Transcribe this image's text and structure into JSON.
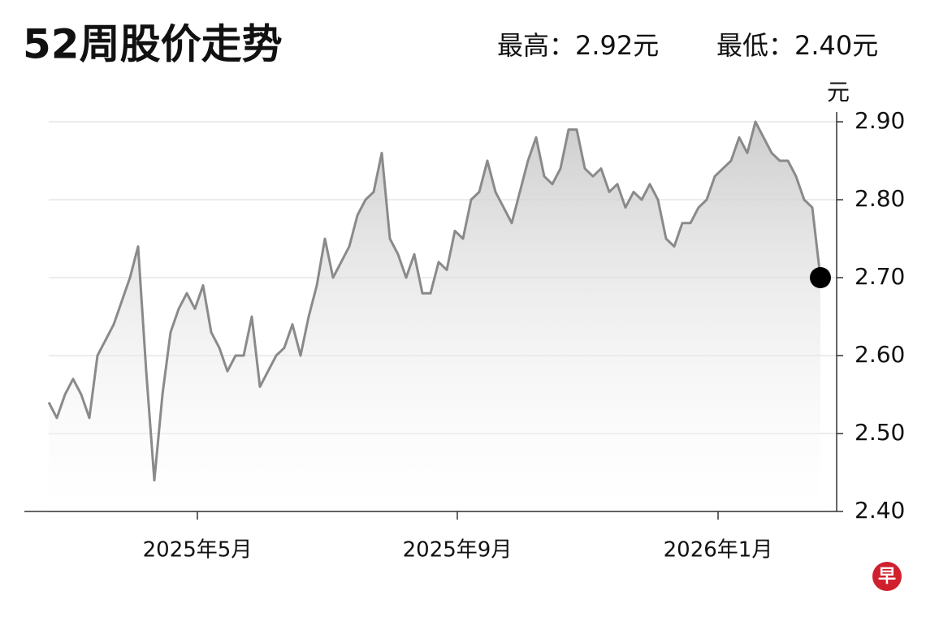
{
  "chart_data": {
    "type": "line",
    "title": "52周股价走势",
    "high_label": "最高：2.92元",
    "low_label": "最低：2.40元",
    "y_unit": "元",
    "logo": "早",
    "color": "#8a8a8a",
    "grid": true,
    "marker_last": true,
    "values": [
      2.54,
      2.52,
      2.55,
      2.57,
      2.55,
      2.52,
      2.6,
      2.62,
      2.64,
      2.67,
      2.7,
      2.74,
      2.58,
      2.44,
      2.55,
      2.63,
      2.66,
      2.68,
      2.66,
      2.69,
      2.63,
      2.61,
      2.58,
      2.6,
      2.6,
      2.65,
      2.56,
      2.58,
      2.6,
      2.61,
      2.64,
      2.6,
      2.65,
      2.69,
      2.75,
      2.7,
      2.72,
      2.74,
      2.78,
      2.8,
      2.81,
      2.86,
      2.75,
      2.73,
      2.7,
      2.73,
      2.68,
      2.68,
      2.72,
      2.71,
      2.76,
      2.75,
      2.8,
      2.81,
      2.85,
      2.81,
      2.79,
      2.77,
      2.81,
      2.85,
      2.88,
      2.83,
      2.82,
      2.84,
      2.89,
      2.89,
      2.84,
      2.83,
      2.84,
      2.81,
      2.82,
      2.79,
      2.81,
      2.8,
      2.82,
      2.8,
      2.75,
      2.74,
      2.77,
      2.77,
      2.79,
      2.8,
      2.83,
      2.84,
      2.85,
      2.88,
      2.86,
      2.9,
      2.88,
      2.86,
      2.85,
      2.85,
      2.83,
      2.8,
      2.79,
      2.7
    ],
    "xlim": [
      -3,
      97
    ],
    "xticks": [
      {
        "value": 18.3,
        "label": "2025年5月"
      },
      {
        "value": 50.3,
        "label": "2025年9月"
      },
      {
        "value": 82.4,
        "label": "2026年1月"
      }
    ],
    "ylim": [
      2.4,
      2.9
    ],
    "yticks": [
      {
        "value": 2.4,
        "label": "2.40"
      },
      {
        "value": 2.5,
        "label": "2.50"
      },
      {
        "value": 2.6,
        "label": "2.60"
      },
      {
        "value": 2.7,
        "label": "2.70"
      },
      {
        "value": 2.8,
        "label": "2.80"
      },
      {
        "value": 2.9,
        "label": "2.90"
      }
    ]
  }
}
